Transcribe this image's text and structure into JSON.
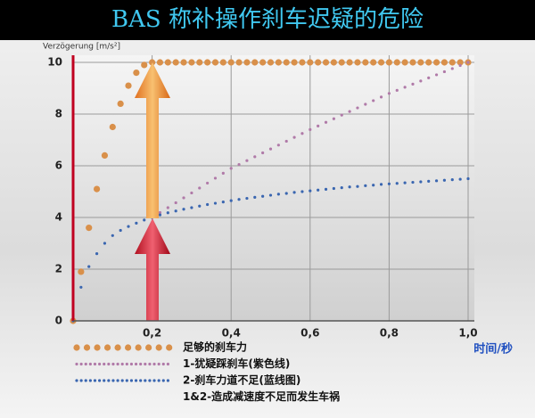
{
  "chart_data": {
    "type": "scatter",
    "title": "BAS 称补操作刹车迟疑的危险",
    "y_label": "Verzögerung [m/s²]",
    "x_label": "时间/秒",
    "x": [
      0,
      0.02,
      0.04,
      0.06,
      0.08,
      0.1,
      0.12,
      0.14,
      0.16,
      0.18,
      0.2,
      0.22,
      0.24,
      0.26,
      0.28,
      0.3,
      0.32,
      0.34,
      0.36,
      0.38,
      0.4,
      0.42,
      0.44,
      0.46,
      0.48,
      0.5,
      0.52,
      0.54,
      0.56,
      0.58,
      0.6,
      0.62,
      0.64,
      0.66,
      0.68,
      0.7,
      0.72,
      0.74,
      0.76,
      0.78,
      0.8,
      0.82,
      0.84,
      0.86,
      0.88,
      0.9,
      0.92,
      0.94,
      0.96,
      0.98,
      1.0
    ],
    "series": [
      {
        "name": "足够的刹车力",
        "color": "#d9904a",
        "values": [
          0,
          1.9,
          3.6,
          5.1,
          6.4,
          7.5,
          8.4,
          9.1,
          9.6,
          9.9,
          10,
          10,
          10,
          10,
          10,
          10,
          10,
          10,
          10,
          10,
          10,
          10,
          10,
          10,
          10,
          10,
          10,
          10,
          10,
          10,
          10,
          10,
          10,
          10,
          10,
          10,
          10,
          10,
          10,
          10,
          10,
          10,
          10,
          10,
          10,
          10,
          10,
          10,
          10,
          10,
          10
        ]
      },
      {
        "name": "1-犹疑踩刹车(紫色线)",
        "color": "#b07aa8",
        "values": [
          null,
          null,
          null,
          null,
          null,
          null,
          null,
          null,
          null,
          null,
          4,
          4.19,
          4.38,
          4.57,
          4.76,
          4.95,
          5.14,
          5.33,
          5.52,
          5.71,
          5.9,
          6.05,
          6.2,
          6.35,
          6.5,
          6.65,
          6.8,
          6.95,
          7.1,
          7.25,
          7.4,
          7.54,
          7.68,
          7.82,
          7.96,
          8.1,
          8.24,
          8.38,
          8.52,
          8.66,
          8.8,
          8.92,
          9.04,
          9.16,
          9.28,
          9.4,
          9.52,
          9.64,
          9.76,
          9.88,
          10
        ]
      },
      {
        "name": "2-刹车力道不足(蓝线图)",
        "color": "#3a66b0",
        "values": [
          0,
          1.3,
          2.1,
          2.6,
          3.0,
          3.3,
          3.5,
          3.65,
          3.78,
          3.9,
          4.0,
          4.1,
          4.18,
          4.25,
          4.32,
          4.38,
          4.44,
          4.5,
          4.55,
          4.6,
          4.65,
          4.7,
          4.74,
          4.78,
          4.82,
          4.86,
          4.9,
          4.93,
          4.97,
          5.0,
          5.03,
          5.06,
          5.09,
          5.12,
          5.15,
          5.18,
          5.2,
          5.23,
          5.25,
          5.28,
          5.3,
          5.32,
          5.34,
          5.36,
          5.38,
          5.4,
          5.42,
          5.44,
          5.46,
          5.48,
          5.5
        ]
      }
    ],
    "legend_note": "1&2-造成减速度不足而发生车祸",
    "xlim": [
      0,
      1.0
    ],
    "xticks": [
      {
        "value": 0.2,
        "label": "0,2"
      },
      {
        "value": 0.4,
        "label": "0,4"
      },
      {
        "value": 0.6,
        "label": "0,6"
      },
      {
        "value": 0.8,
        "label": "0,8"
      },
      {
        "value": 1.0,
        "label": "1,0"
      }
    ],
    "ylim": [
      0,
      10
    ],
    "yticks": [
      0,
      2,
      4,
      6,
      8,
      10
    ],
    "grid": true
  }
}
